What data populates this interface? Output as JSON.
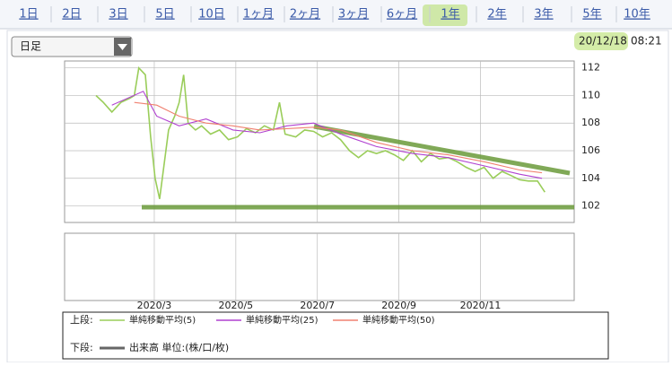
{
  "tabs": [
    "1日",
    "2日",
    "3日",
    "5日",
    "10日",
    "1ヶ月",
    "2ヶ月",
    "3ヶ月",
    "6ヶ月",
    "1年",
    "2年",
    "3年",
    "5年",
    "10年"
  ],
  "dropdown": "日足",
  "timestamp": {
    "date": "20/12/18",
    "time": "08:21"
  },
  "chart_data": {
    "type": "line",
    "series": [
      {
        "name": "単純移動平均(5)",
        "color": "#9acd5a",
        "x": [
          1.57,
          1.75,
          1.96,
          2.18,
          2.4,
          2.51,
          2.62,
          2.78,
          2.91,
          3.02,
          3.13,
          3.24,
          3.35,
          3.5,
          3.61,
          3.72,
          3.83,
          4.01,
          4.16,
          4.38,
          4.6,
          4.82,
          5.04,
          5.26,
          5.48,
          5.7,
          5.92,
          6.07,
          6.21,
          6.47,
          6.69,
          6.91,
          7.13,
          7.35,
          7.57,
          7.79,
          8.01,
          8.23,
          8.45,
          8.67,
          8.89,
          9.11,
          9.33,
          9.55,
          9.77,
          9.99,
          10.21,
          10.43,
          10.65,
          10.87,
          11.09,
          11.31,
          11.53,
          11.75,
          11.96,
          12.18,
          12.4,
          12.58
        ],
        "values": [
          110.0,
          109.5,
          108.8,
          109.5,
          109.8,
          110.0,
          112.0,
          111.5,
          107.0,
          104.0,
          102.5,
          105.0,
          107.5,
          108.5,
          109.5,
          111.5,
          108.0,
          107.5,
          107.8,
          107.2,
          107.5,
          106.8,
          107.0,
          107.6,
          107.3,
          107.8,
          107.5,
          109.5,
          107.2,
          107.0,
          107.5,
          107.4,
          107.0,
          107.3,
          106.8,
          106.0,
          105.5,
          106.0,
          105.8,
          106.0,
          105.7,
          105.3,
          106.0,
          105.2,
          105.8,
          105.4,
          105.5,
          105.2,
          104.8,
          104.5,
          104.8,
          104.0,
          104.5,
          104.2,
          103.9,
          103.8,
          103.8,
          103.0
        ]
      },
      {
        "name": "単純移動平均(25)",
        "color": "#b040d0",
        "x": [
          1.96,
          2.73,
          3.06,
          3.61,
          4.27,
          4.93,
          5.59,
          6.25,
          6.91,
          7.57,
          8.45,
          9.33,
          10.21,
          11.09,
          11.96,
          12.51
        ],
        "values": [
          109.3,
          110.3,
          108.5,
          107.8,
          108.3,
          107.5,
          107.3,
          107.8,
          108.0,
          107.2,
          106.3,
          105.8,
          105.5,
          104.9,
          104.3,
          104.0
        ]
      },
      {
        "name": "単純移動平均(50)",
        "color": "#f08070",
        "x": [
          2.51,
          3.06,
          3.61,
          4.27,
          4.93,
          5.59,
          6.25,
          6.91,
          7.57,
          8.45,
          9.33,
          10.21,
          11.09,
          11.96,
          12.51
        ],
        "values": [
          109.5,
          109.3,
          108.5,
          108.0,
          107.8,
          107.5,
          107.6,
          107.7,
          107.5,
          106.6,
          106.0,
          105.7,
          105.2,
          104.6,
          104.4
        ]
      }
    ],
    "xlim": [
      0.8,
      13.3
    ],
    "xticks": [
      {
        "value": 3,
        "label": "2020/3"
      },
      {
        "value": 5,
        "label": "2020/5"
      },
      {
        "value": 7,
        "label": "2020/7"
      },
      {
        "value": 9,
        "label": "2020/9"
      },
      {
        "value": 11,
        "label": "2020/11"
      }
    ],
    "ylim": [
      100.8,
      112.5
    ],
    "yticks": [
      102,
      104,
      106,
      108,
      110,
      112
    ],
    "grid": true
  },
  "legend": {
    "upper_label": "上段:",
    "lower_label": "下段:",
    "volume_label": "出来高 単位:(株/口/枚)"
  }
}
